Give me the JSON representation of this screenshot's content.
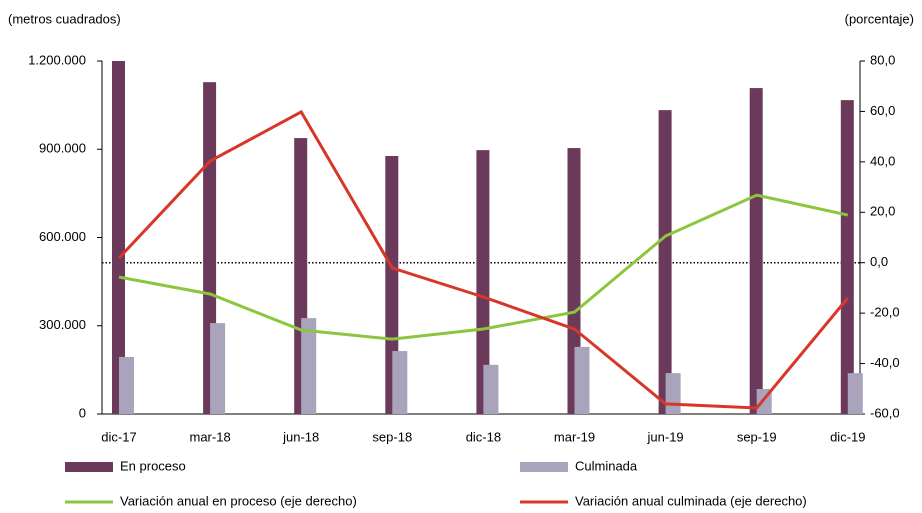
{
  "chart_data": {
    "type": "bar-line",
    "y_label": "(metros cuadrados)",
    "y2_label": "(porcentaje)",
    "categories": [
      "dic-17",
      "mar-18",
      "jun-18",
      "sep-18",
      "dic-18",
      "mar-19",
      "jun-19",
      "sep-19",
      "dic-19"
    ],
    "series": [
      {
        "name": "En proceso",
        "kind": "bar",
        "color": "#6b3a5a",
        "values": [
          1200000,
          1128000,
          938000,
          877000,
          897000,
          904000,
          1033000,
          1108000,
          1067000
        ]
      },
      {
        "name": "Culminada",
        "kind": "bar",
        "color": "#a9a4bc",
        "values": [
          194000,
          309000,
          326000,
          214000,
          167000,
          228000,
          139000,
          85000,
          139000
        ]
      },
      {
        "name": "Variación anual en proceso (eje derecho)",
        "kind": "line",
        "axis": "y2",
        "color": "#8cc63e",
        "values": [
          -5.7,
          -12.4,
          -26.7,
          -30.3,
          -26.3,
          -19.6,
          10.6,
          26.8,
          18.9
        ]
      },
      {
        "name": "Variación anual culminada (eje derecho)",
        "kind": "line",
        "axis": "y2",
        "color": "#d9362a",
        "values": [
          1.9,
          40.3,
          59.8,
          -2.1,
          -13.6,
          -26.3,
          -56.0,
          -57.6,
          -14.0
        ]
      }
    ],
    "ylim": [
      0,
      1200000
    ],
    "yticks": [
      0,
      {
        "value": 300000,
        "label": "300.000"
      },
      {
        "value": 600000,
        "label": "600.000"
      },
      {
        "value": 900000,
        "label": "900.000"
      },
      {
        "value": 1200000,
        "label": "1.200.000"
      }
    ],
    "y2lim": [
      -60,
      80
    ],
    "y2ticks": [
      {
        "value": -60,
        "label": "-60,0"
      },
      {
        "value": -40,
        "label": "-40,0"
      },
      {
        "value": -20,
        "label": "-20,0"
      },
      {
        "value": 0,
        "label": "0,0"
      },
      {
        "value": 20,
        "label": "20,0"
      },
      {
        "value": 40,
        "label": "40,0"
      },
      {
        "value": 60,
        "label": "60,0"
      },
      {
        "value": 80,
        "label": "80,0"
      }
    ],
    "zero_line": true
  }
}
